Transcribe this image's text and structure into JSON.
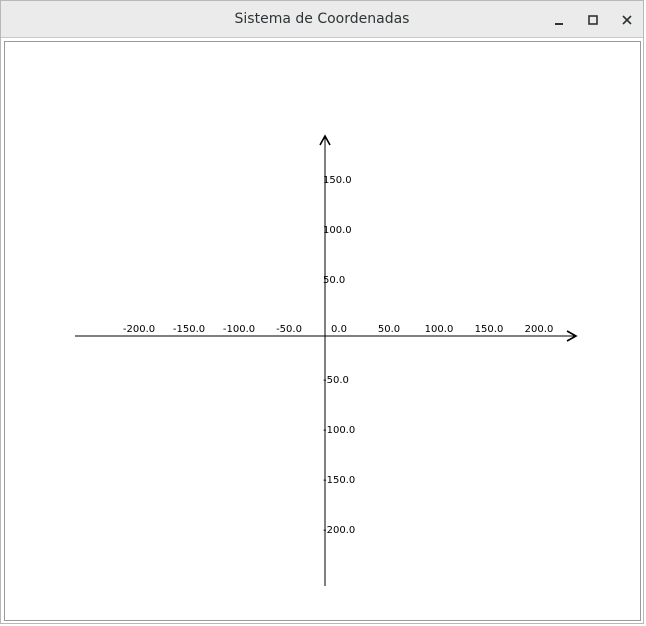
{
  "window": {
    "title": "Sistema de Coordenadas",
    "controls": {
      "minimize": "minimize-icon",
      "maximize": "maximize-icon",
      "close": "close-icon"
    }
  },
  "chart_data": {
    "type": "line",
    "title": "",
    "xlabel": "",
    "ylabel": "",
    "xlim": [
      -250,
      250
    ],
    "ylim": [
      -250,
      250
    ],
    "grid": false,
    "x_ticks": [
      -200,
      -150,
      -100,
      -50,
      0,
      50,
      100,
      150,
      200
    ],
    "y_ticks": [
      150,
      100,
      50,
      0,
      -50,
      -100,
      -150,
      -200
    ],
    "x_tick_labels": [
      "-200.0",
      "-150.0",
      "-100.0",
      "-50.0",
      "0.0",
      "50.0",
      "100.0",
      "150.0",
      "200.0"
    ],
    "y_tick_labels": [
      "150.0",
      "100.0",
      "50.0",
      "0.0",
      "-50.0",
      "-100.0",
      "-150.0",
      "-200.0"
    ],
    "axis_color": "#000000",
    "arrows": [
      "x-positive",
      "y-positive"
    ]
  }
}
